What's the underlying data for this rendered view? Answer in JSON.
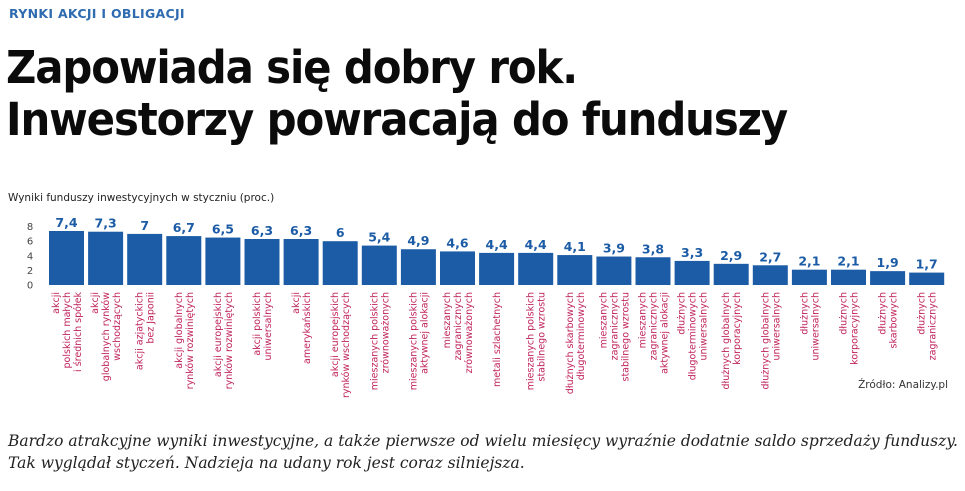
{
  "header": {
    "section_tag": "RYNKI AKCJI I OBLIGACJI",
    "headline_line1": "Zapowiada się dobry rok.",
    "headline_line2": "Inwestorzy powracają do funduszy"
  },
  "caption": {
    "line1": "Bardzo atrakcyjne wyniki inwestycyjne, a także pierwsze od wielu miesięcy wyraźnie dodatnie saldo sprzedaży funduszy.",
    "line2": "Tak wyglądał styczeń. Nadzieja na udany rok jest coraz silniejsza."
  },
  "colors": {
    "bar": "#1c5ca6",
    "label": "#c0245c",
    "tag": "#2e6bb0"
  },
  "chart_data": {
    "type": "bar",
    "title": "Wyniki funduszy inwestycyjnych w styczniu (proc.)",
    "source": "Źródło: Analizy.pl",
    "ylim": [
      0,
      8
    ],
    "yticks": [
      0,
      2,
      4,
      6,
      8
    ],
    "grid": false,
    "categories": [
      [
        "akcji",
        "polskich małych",
        "i średnich spółek"
      ],
      [
        "akcji",
        "globalnych rynków",
        "wschodzących"
      ],
      [
        "akcji azjatyckich",
        "bez Japonii"
      ],
      [
        "akcji globalnych",
        "rynków rozwiniętych"
      ],
      [
        "akcji europejskich",
        "rynków rozwiniętych"
      ],
      [
        "akcji polskich",
        "uniwersalnych"
      ],
      [
        "akcji",
        "amerykańskich"
      ],
      [
        "akcji europejskich",
        "rynków wschodzących"
      ],
      [
        "mieszanych polskich",
        "zrównoważonych"
      ],
      [
        "mieszanych polskich",
        "aktywnej alokacji"
      ],
      [
        "mieszanych",
        "zagranicznych",
        "zrównoważonych"
      ],
      [
        "metali szlachetnych"
      ],
      [
        "mieszanych polskich",
        "stabilnego wzrostu"
      ],
      [
        "dłużnych skarbowych",
        "długoterminowych"
      ],
      [
        "mieszanych",
        "zagranicznych",
        "stabilnego wzrostu"
      ],
      [
        "mieszanych",
        "zagranicznych",
        "aktywnej alokacji"
      ],
      [
        "dłużnych",
        "długoterminowych",
        "uniwersalnych"
      ],
      [
        "dłużnych globalnych",
        "korporacyjnych"
      ],
      [
        "dłużnych globalnych",
        "uniwersalnych"
      ],
      [
        "dłużnych",
        "uniwersalnych"
      ],
      [
        "dłużnych",
        "korporacyjnych"
      ],
      [
        "dłużnych",
        "skarbowych"
      ],
      [
        "dłużnych",
        "zagranicznych"
      ]
    ],
    "values": [
      7.4,
      7.3,
      7.0,
      6.7,
      6.5,
      6.3,
      6.3,
      6.0,
      5.4,
      4.9,
      4.6,
      4.4,
      4.4,
      4.1,
      3.9,
      3.8,
      3.3,
      2.9,
      2.7,
      2.1,
      2.1,
      1.9,
      1.7
    ],
    "value_labels": [
      "7,4",
      "7,3",
      "7",
      "6,7",
      "6,5",
      "6,3",
      "6,3",
      "6",
      "5,4",
      "4,9",
      "4,6",
      "4,4",
      "4,4",
      "4,1",
      "3,9",
      "3,8",
      "3,3",
      "2,9",
      "2,7",
      "2,1",
      "2,1",
      "1,9",
      "1,7"
    ]
  }
}
